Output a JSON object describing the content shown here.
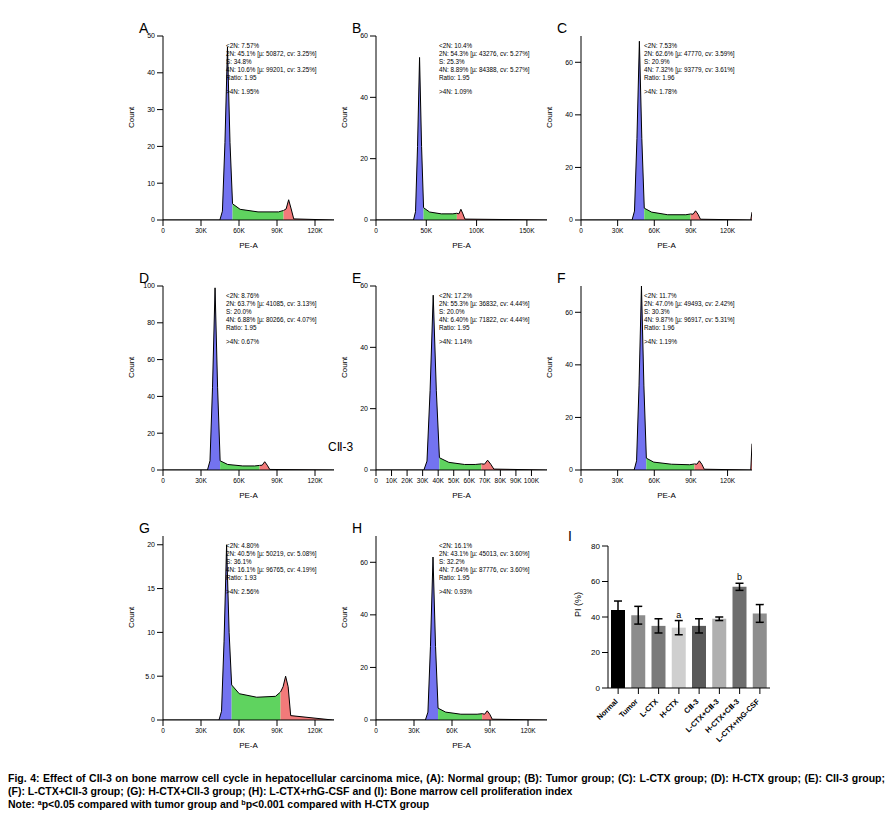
{
  "chart_data": [
    {
      "type": "area",
      "title": "A",
      "x_label": "PE-A",
      "y_label": "Count",
      "x": [
        0,
        44900,
        46900,
        48900,
        50900,
        52900,
        54900,
        60900,
        75000,
        91200,
        95200,
        97200,
        99200,
        101200,
        103200,
        134000,
        135000
      ],
      "series": [
        {
          "color": "#7373f0",
          "values": [
            0,
            0,
            2.4,
            21,
            47,
            21,
            4.4,
            null,
            null,
            null,
            null,
            null,
            null,
            null,
            null,
            null,
            null
          ]
        },
        {
          "color": "#5fd35f",
          "values": [
            null,
            null,
            null,
            null,
            null,
            null,
            4.4,
            2.9,
            2.2,
            2.2,
            2.6,
            null,
            null,
            null,
            null,
            null,
            null
          ]
        },
        {
          "color": "#f27a7a",
          "values": [
            null,
            null,
            null,
            null,
            null,
            null,
            null,
            null,
            null,
            null,
            2.6,
            3,
            5.5,
            3,
            0.3,
            0,
            0
          ]
        }
      ],
      "xlim": [
        0,
        135000
      ],
      "xticks": [
        0,
        {
          "value": 30000,
          "label": "30K"
        },
        {
          "value": 60000,
          "label": "60K"
        },
        {
          "value": 90000,
          "label": "90K"
        },
        {
          "value": 120000,
          "label": "120K"
        }
      ],
      "ylim": [
        0,
        50
      ],
      "yticks": [
        0,
        10,
        20,
        30,
        40,
        50
      ],
      "annotations": [
        "<2N: 7.57%",
        "2N: 45.1% [µ: 50872, cv: 3.25%]",
        "S: 34.8%",
        "4N: 10.6% [µ: 99201, cv: 3.25%]",
        "Ratio: 1.95",
        ">4N: 1.95%"
      ]
    },
    {
      "type": "area",
      "title": "B",
      "x_label": "PE-A",
      "y_label": "Count",
      "x": [
        0,
        37300,
        39300,
        41300,
        43300,
        45300,
        47300,
        53300,
        65000,
        76400,
        80400,
        82400,
        84400,
        86400,
        88400,
        169000,
        170000
      ],
      "series": [
        {
          "color": "#7373f0",
          "values": [
            0,
            0,
            2.7,
            24,
            53,
            24,
            4,
            null,
            null,
            null,
            null,
            null,
            null,
            null,
            null,
            null,
            null
          ]
        },
        {
          "color": "#5fd35f",
          "values": [
            null,
            null,
            null,
            null,
            null,
            null,
            4,
            2.6,
            2,
            2,
            2.2,
            null,
            null,
            null,
            null,
            null,
            null
          ]
        },
        {
          "color": "#f27a7a",
          "values": [
            null,
            null,
            null,
            null,
            null,
            null,
            null,
            null,
            null,
            null,
            2.2,
            2,
            3.5,
            2,
            0.3,
            0,
            0
          ]
        }
      ],
      "xlim": [
        0,
        170000
      ],
      "xticks": [
        0,
        {
          "value": 50000,
          "label": "50K"
        },
        {
          "value": 100000,
          "label": "100K"
        },
        {
          "value": 150000,
          "label": "150K"
        }
      ],
      "ylim": [
        0,
        60
      ],
      "yticks": [
        0,
        20,
        40,
        60
      ],
      "annotations": [
        "<2N: 10.4%",
        "2N: 54.3% [µ: 43276, cv: 5.27%]",
        "S: 25.3%",
        "4N: 8.89% [µ: 84388, cv: 5.27%]",
        "Ratio: 1.95",
        ">4N: 1.09%"
      ]
    },
    {
      "type": "area",
      "title": "C",
      "x_label": "PE-A",
      "y_label": "Count",
      "x": [
        0,
        41800,
        43800,
        45800,
        47800,
        49800,
        51800,
        57800,
        71000,
        85800,
        89800,
        91800,
        93800,
        95800,
        97800,
        139000,
        140000
      ],
      "series": [
        {
          "color": "#7373f0",
          "values": [
            0,
            0,
            3.4,
            31,
            68,
            31,
            4.5,
            null,
            null,
            null,
            null,
            null,
            null,
            null,
            null,
            null,
            null
          ]
        },
        {
          "color": "#5fd35f",
          "values": [
            null,
            null,
            null,
            null,
            null,
            null,
            4.5,
            3,
            2,
            2,
            2.3,
            null,
            null,
            null,
            null,
            null,
            null
          ]
        },
        {
          "color": "#f27a7a",
          "values": [
            null,
            null,
            null,
            null,
            null,
            null,
            null,
            null,
            null,
            null,
            2.3,
            2.2,
            3.5,
            2.2,
            0.3,
            0,
            3
          ]
        }
      ],
      "xlim": [
        0,
        140000
      ],
      "xticks": [
        0,
        {
          "value": 30000,
          "label": "30K"
        },
        {
          "value": 60000,
          "label": "60K"
        },
        {
          "value": 90000,
          "label": "90K"
        },
        {
          "value": 120000,
          "label": "120K"
        }
      ],
      "ylim": [
        0,
        70
      ],
      "yticks": [
        0,
        20,
        40,
        60
      ],
      "annotations": [
        "<2N: 7.53%",
        "2N: 62.6% [µ: 47770, cv: 3.59%]",
        "S: 20.9%",
        "4N: 7.32% [µ: 93779, cv: 3.61%]",
        "Ratio: 1.96",
        ">4N: 1.78%"
      ]
    },
    {
      "type": "area",
      "title": "D",
      "x_label": "PE-A",
      "y_label": "Count",
      "x": [
        0,
        35100,
        37100,
        39100,
        41100,
        43100,
        45100,
        51100,
        63000,
        72300,
        76300,
        78300,
        80300,
        82300,
        84300,
        134000,
        135000
      ],
      "series": [
        {
          "color": "#7373f0",
          "values": [
            0,
            0,
            5,
            45,
            99,
            45,
            5,
            null,
            null,
            null,
            null,
            null,
            null,
            null,
            null,
            null,
            null
          ]
        },
        {
          "color": "#5fd35f",
          "values": [
            null,
            null,
            null,
            null,
            null,
            null,
            5,
            3,
            2.2,
            2.2,
            2.5,
            null,
            null,
            null,
            null,
            null,
            null
          ]
        },
        {
          "color": "#f27a7a",
          "values": [
            null,
            null,
            null,
            null,
            null,
            null,
            null,
            null,
            null,
            null,
            2.5,
            2.6,
            4.5,
            2.6,
            0.3,
            0,
            0
          ]
        }
      ],
      "xlim": [
        0,
        135000
      ],
      "xticks": [
        0,
        {
          "value": 30000,
          "label": "30K"
        },
        {
          "value": 60000,
          "label": "60K"
        },
        {
          "value": 90000,
          "label": "90K"
        },
        {
          "value": 120000,
          "label": "120K"
        }
      ],
      "ylim": [
        0,
        100
      ],
      "yticks": [
        0,
        20,
        40,
        60,
        80,
        100
      ],
      "annotations": [
        "<2N: 8.76%",
        "2N: 63.7% [µ: 41085, cv: 3.13%]",
        "S: 20.0%",
        "4N: 6.88% [µ: 80266, cv: 4.07%]",
        "Ratio: 1.95",
        ">4N: 0.67%"
      ]
    },
    {
      "type": "area",
      "title": "E",
      "x_label": "PE-A",
      "y_label": "Count",
      "note": "CⅡ-3",
      "x": [
        0,
        30800,
        32800,
        34800,
        36800,
        38800,
        40800,
        46800,
        57000,
        63800,
        67800,
        69800,
        71800,
        73800,
        75800,
        109000,
        110000
      ],
      "series": [
        {
          "color": "#7373f0",
          "values": [
            0,
            0,
            2.9,
            26,
            57,
            26,
            4,
            null,
            null,
            null,
            null,
            null,
            null,
            null,
            null,
            null,
            null
          ]
        },
        {
          "color": "#5fd35f",
          "values": [
            null,
            null,
            null,
            null,
            null,
            null,
            4,
            2.5,
            1.8,
            1.8,
            2,
            null,
            null,
            null,
            null,
            null,
            null
          ]
        },
        {
          "color": "#f27a7a",
          "values": [
            null,
            null,
            null,
            null,
            null,
            null,
            null,
            null,
            null,
            null,
            2,
            1.9,
            3.2,
            1.9,
            0.3,
            0,
            0
          ]
        }
      ],
      "xlim": [
        0,
        110000
      ],
      "xticks": [
        0,
        {
          "value": 10000,
          "label": "10K"
        },
        {
          "value": 20000,
          "label": "20K"
        },
        {
          "value": 30000,
          "label": "30K"
        },
        {
          "value": 40000,
          "label": "40K"
        },
        {
          "value": 50000,
          "label": "50K"
        },
        {
          "value": 60000,
          "label": "60K"
        },
        {
          "value": 70000,
          "label": "70K"
        },
        {
          "value": 80000,
          "label": "80K"
        },
        {
          "value": 90000,
          "label": "90K"
        },
        {
          "value": 100000,
          "label": "100K"
        }
      ],
      "ylim": [
        0,
        60
      ],
      "yticks": [
        0,
        20,
        40,
        60
      ],
      "annotations": [
        "<2N: 17.2%",
        "2N: 55.3% [µ: 36832, cv: 4.44%]",
        "S: 20.0%",
        "4N: 6.40% [µ: 71822, cv: 4.44%]",
        "Ratio: 1.95",
        ">4N: 1.14%"
      ]
    },
    {
      "type": "area",
      "title": "F",
      "x_label": "PE-A",
      "y_label": "Count",
      "x": [
        0,
        43500,
        45500,
        47500,
        49500,
        51500,
        53500,
        59500,
        74000,
        88900,
        92900,
        94900,
        96900,
        98900,
        100900,
        139000,
        140000
      ],
      "series": [
        {
          "color": "#7373f0",
          "values": [
            0,
            0,
            3.5,
            32,
            70,
            32,
            4.5,
            null,
            null,
            null,
            null,
            null,
            null,
            null,
            null,
            null,
            null
          ]
        },
        {
          "color": "#5fd35f",
          "values": [
            null,
            null,
            null,
            null,
            null,
            null,
            4.5,
            3,
            2.2,
            2,
            2.3,
            null,
            null,
            null,
            null,
            null,
            null
          ]
        },
        {
          "color": "#f27a7a",
          "values": [
            null,
            null,
            null,
            null,
            null,
            null,
            null,
            null,
            null,
            null,
            2.3,
            2.2,
            3.5,
            2.2,
            0.3,
            0,
            10
          ]
        }
      ],
      "xlim": [
        0,
        140000
      ],
      "xticks": [
        0,
        {
          "value": 30000,
          "label": "30K"
        },
        {
          "value": 60000,
          "label": "60K"
        },
        {
          "value": 90000,
          "label": "90K"
        },
        {
          "value": 120000,
          "label": "120K"
        }
      ],
      "ylim": [
        0,
        70
      ],
      "yticks": [
        0,
        20,
        40,
        60
      ],
      "annotations": [
        "<2N: 11.7%",
        "2N: 47.0% [µ: 49493, cv: 2.42%]",
        "S: 30.3%",
        "4N: 9.87% [µ: 96917, cv: 5.31%]",
        "Ratio: 1.96",
        ">4N: 1.19%"
      ]
    },
    {
      "type": "area",
      "title": "G",
      "x_label": "PE-A",
      "y_label": "Count",
      "x": [
        0,
        44200,
        46200,
        48200,
        50200,
        52200,
        54200,
        60200,
        74000,
        88800,
        92800,
        94800,
        96800,
        98800,
        100800,
        134000,
        135000
      ],
      "series": [
        {
          "color": "#7373f0",
          "values": [
            0,
            0,
            1,
            9,
            20,
            10,
            4,
            null,
            null,
            null,
            null,
            null,
            null,
            null,
            null,
            null,
            null
          ]
        },
        {
          "color": "#5fd35f",
          "values": [
            null,
            null,
            null,
            null,
            null,
            null,
            4,
            3,
            2.6,
            2.7,
            3.2,
            null,
            null,
            null,
            null,
            null,
            null
          ]
        },
        {
          "color": "#f27a7a",
          "values": [
            null,
            null,
            null,
            null,
            null,
            null,
            null,
            null,
            null,
            null,
            3.2,
            3.8,
            5,
            3.8,
            0.5,
            0,
            0
          ]
        }
      ],
      "xlim": [
        0,
        135000
      ],
      "xticks": [
        0,
        {
          "value": 30000,
          "label": "30K"
        },
        {
          "value": 60000,
          "label": "60K"
        },
        {
          "value": 90000,
          "label": "90K"
        },
        {
          "value": 120000,
          "label": "120K"
        }
      ],
      "ylim": [
        0,
        21
      ],
      "yticks": [
        0,
        {
          "value": 5,
          "label": "5.0"
        },
        10,
        15,
        20
      ],
      "annotations": [
        "<2N: 4.80%",
        "2N: 40.5% [µ: 50219, cv: 5.08%]",
        "S: 36.1%",
        "4N: 16.1% [µ: 96765, cv: 4.19%]",
        "Ratio: 1.93",
        ">4N: 2.56%"
      ]
    },
    {
      "type": "area",
      "title": "H",
      "x_label": "PE-A",
      "y_label": "Count",
      "x": [
        0,
        39000,
        41000,
        43000,
        45000,
        47000,
        49000,
        55000,
        67000,
        79800,
        83800,
        85800,
        87800,
        89800,
        91800,
        134000,
        135000
      ],
      "series": [
        {
          "color": "#7373f0",
          "values": [
            0,
            0,
            3,
            28,
            62,
            28,
            4.5,
            null,
            null,
            null,
            null,
            null,
            null,
            null,
            null,
            null,
            null
          ]
        },
        {
          "color": "#5fd35f",
          "values": [
            null,
            null,
            null,
            null,
            null,
            null,
            4.5,
            3,
            2.2,
            2.2,
            2.4,
            null,
            null,
            null,
            null,
            null,
            null
          ]
        },
        {
          "color": "#f27a7a",
          "values": [
            null,
            null,
            null,
            null,
            null,
            null,
            null,
            null,
            null,
            null,
            2.4,
            2.2,
            3.5,
            2.2,
            0.3,
            0,
            0
          ]
        }
      ],
      "xlim": [
        0,
        135000
      ],
      "xticks": [
        0,
        {
          "value": 30000,
          "label": "30K"
        },
        {
          "value": 60000,
          "label": "60K"
        },
        {
          "value": 90000,
          "label": "90K"
        },
        {
          "value": 120000,
          "label": "120K"
        }
      ],
      "ylim": [
        0,
        70
      ],
      "yticks": [
        0,
        20,
        40,
        60
      ],
      "annotations": [
        "<2N: 16.1%",
        "2N: 43.1% [µ: 45013, cv: 3.60%]",
        "S: 32.2%",
        "4N: 7.64% [µ: 87776, cv: 3.60%]",
        "Ratio: 1.95",
        ">4N: 0.93%"
      ]
    },
    {
      "type": "bar",
      "title": "I",
      "y_label": "PI (%)",
      "categories": [
        "Normal",
        "Tumor",
        "L-CTX",
        "H-CTX",
        "CⅡ-3",
        "L-CTX+CⅡ-3",
        "H-CTX+CⅡ-3",
        "L-CTX+rhG-CSF"
      ],
      "values": [
        44,
        41,
        35,
        34,
        35,
        39,
        57,
        42
      ],
      "errors": [
        5,
        5,
        4,
        4,
        4,
        1,
        2,
        5
      ],
      "significance": [
        null,
        null,
        null,
        "a",
        null,
        null,
        "b",
        null
      ],
      "colors": [
        "#000000",
        "#8c8c8c",
        "#7a7a7a",
        "#cfcfcf",
        "#5a5a5a",
        "#b0b0b0",
        "#6e6e6e",
        "#8e8e8e"
      ],
      "ylim": [
        0,
        80
      ],
      "yticks": [
        0,
        20,
        40,
        60,
        80
      ]
    }
  ],
  "caption": "Fig. 4: Effect of CII-3 on bone marrow cell cycle in hepatocellular carcinoma mice, (A): Normal group; (B): Tumor group; (C): L-CTX group; (D): H-CTX group; (E): CII-3 group; (F): L-CTX+CII-3 group; (G): H-CTX+CII-3 group; (H): L-CTX+rhG-CSF and (I): Bone marrow cell proliferation index",
  "note": "Note: ᵃp<0.05 compared with tumor group and ᵇp<0.001 compared with H-CTX group"
}
